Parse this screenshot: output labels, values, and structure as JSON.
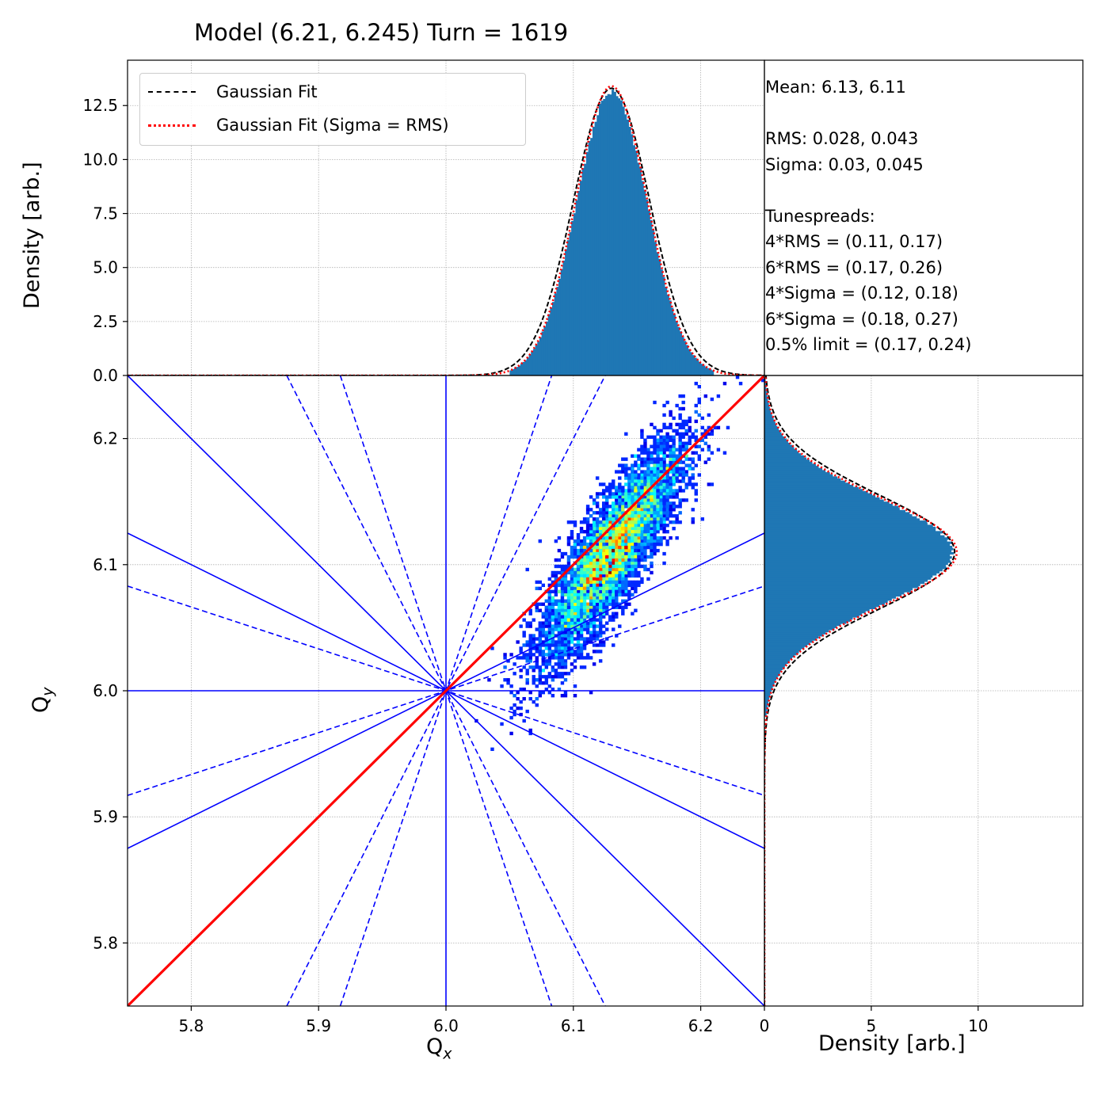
{
  "title": "Model (6.21, 6.245) Turn = 1619",
  "legend": {
    "items": [
      {
        "label": "Gaussian Fit",
        "style": "dashed",
        "color": "#000000"
      },
      {
        "label": "Gaussian Fit (Sigma = RMS)",
        "style": "dotted",
        "color": "#ff0000"
      }
    ]
  },
  "stats": {
    "mean": "Mean: 6.13, 6.11",
    "rms": "RMS: 0.028, 0.043",
    "sigma": "Sigma: 0.03, 0.045",
    "tunespreads_heading": "Tunespreads:",
    "rms4": "4*RMS = (0.11, 0.17)",
    "rms6": "6*RMS = (0.17, 0.26)",
    "sigma4": "4*Sigma = (0.12, 0.18)",
    "sigma6": "6*Sigma = (0.18, 0.27)",
    "limit": "0.5% limit = (0.17, 0.24)"
  },
  "colors": {
    "hist": "#1f77b4",
    "resonance": "#0000ff",
    "diagonal": "#ff0000",
    "fit": "#000000",
    "fit_rms": "#ff0000"
  },
  "chart_data": [
    {
      "type": "heatmap",
      "name": "tune-footprint",
      "xlabel": "Qx",
      "ylabel": "Qy",
      "xlim": [
        5.75,
        6.25
      ],
      "ylim": [
        5.75,
        6.25
      ],
      "xticks": [
        "5.8",
        "5.9",
        "6.0",
        "6.1",
        "6.2"
      ],
      "yticks": [
        "5.8",
        "5.9",
        "6.0",
        "6.1",
        "6.2"
      ],
      "distribution": {
        "mean_x": 6.13,
        "mean_y": 6.11,
        "rms_x": 0.028,
        "rms_y": 0.043,
        "correlation": 0.85
      },
      "resonance_lines": {
        "solid": [
          [
            6.0,
            5.75,
            6.0,
            6.25
          ],
          [
            5.75,
            6.0,
            6.25,
            6.0
          ],
          [
            5.75,
            6.25,
            6.25,
            5.75
          ],
          [
            5.75,
            6.125,
            6.25,
            5.875
          ],
          [
            5.75,
            5.875,
            6.25,
            6.125
          ]
        ],
        "dashed": [
          [
            5.875,
            5.75,
            6.125,
            6.25
          ],
          [
            5.875,
            6.25,
            6.125,
            5.75
          ],
          [
            5.917,
            6.25,
            6.083,
            5.75
          ],
          [
            5.917,
            5.75,
            6.083,
            6.25
          ],
          [
            5.75,
            6.083,
            6.25,
            5.917
          ],
          [
            5.75,
            5.917,
            6.25,
            6.083
          ]
        ],
        "diagonal": [
          5.75,
          5.75,
          6.25,
          6.25
        ]
      }
    },
    {
      "type": "bar",
      "name": "qx-histogram",
      "ylabel": "Density [arb.]",
      "xlim": [
        5.75,
        6.25
      ],
      "ylim": [
        0,
        14.6
      ],
      "yticks": [
        "0.0",
        "2.5",
        "5.0",
        "7.5",
        "10.0",
        "12.5"
      ],
      "histogram": {
        "center": 6.13,
        "width": 0.028,
        "peak": 13.1,
        "range": [
          6.05,
          6.21
        ]
      },
      "fits": [
        {
          "label": "Gaussian Fit",
          "mean": 6.13,
          "sigma": 0.03,
          "amplitude": 13.3
        },
        {
          "label": "Gaussian Fit (Sigma = RMS)",
          "mean": 6.13,
          "sigma": 0.028,
          "amplitude": 13.4
        }
      ]
    },
    {
      "type": "bar",
      "name": "qy-histogram",
      "orientation": "horizontal",
      "xlabel": "Density [arb.]",
      "xlim": [
        0,
        14.9
      ],
      "ylim": [
        5.75,
        6.25
      ],
      "xticks": [
        "0",
        "5",
        "10"
      ],
      "histogram": {
        "center": 6.11,
        "width": 0.043,
        "peak": 8.8,
        "range": [
          5.98,
          6.25
        ]
      },
      "fits": [
        {
          "label": "Gaussian Fit",
          "mean": 6.11,
          "sigma": 0.045,
          "amplitude": 8.9
        },
        {
          "label": "Gaussian Fit (Sigma = RMS)",
          "mean": 6.11,
          "sigma": 0.043,
          "amplitude": 9.0
        }
      ]
    }
  ]
}
